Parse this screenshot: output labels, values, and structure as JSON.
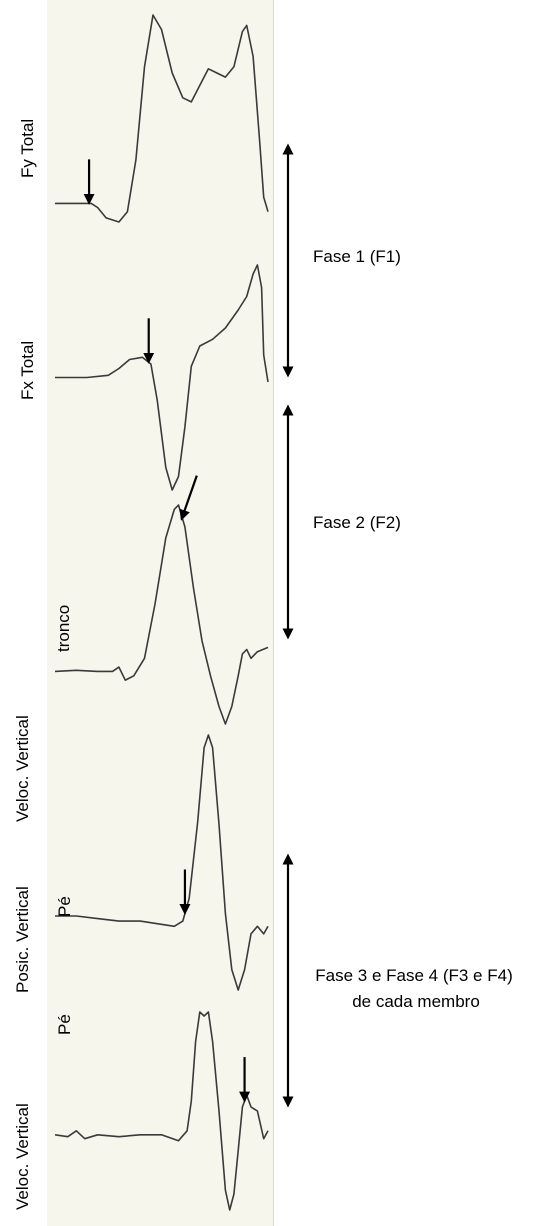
{
  "chart_data": {
    "type": "line",
    "title": "",
    "series": [
      {
        "name": "Fy Total",
        "points": [
          [
            0,
            0.09
          ],
          [
            0.12,
            0.09
          ],
          [
            0.17,
            0.09
          ],
          [
            0.2,
            0.07
          ],
          [
            0.24,
            0.02
          ],
          [
            0.3,
            0
          ],
          [
            0.34,
            0.05
          ],
          [
            0.38,
            0.3
          ],
          [
            0.42,
            0.75
          ],
          [
            0.46,
            1.0
          ],
          [
            0.5,
            0.93
          ],
          [
            0.55,
            0.72
          ],
          [
            0.6,
            0.6
          ],
          [
            0.64,
            0.58
          ],
          [
            0.68,
            0.66
          ],
          [
            0.72,
            0.74
          ],
          [
            0.76,
            0.72
          ],
          [
            0.8,
            0.7
          ],
          [
            0.84,
            0.75
          ],
          [
            0.88,
            0.92
          ],
          [
            0.9,
            0.95
          ],
          [
            0.93,
            0.8
          ],
          [
            0.96,
            0.4
          ],
          [
            0.98,
            0.12
          ],
          [
            1.0,
            0.05
          ]
        ],
        "marker_x": 0.16
      },
      {
        "name": "Fx Total",
        "points": [
          [
            0,
            0.5
          ],
          [
            0.15,
            0.5
          ],
          [
            0.25,
            0.51
          ],
          [
            0.3,
            0.54
          ],
          [
            0.35,
            0.58
          ],
          [
            0.41,
            0.59
          ],
          [
            0.45,
            0.56
          ],
          [
            0.48,
            0.4
          ],
          [
            0.52,
            0.1
          ],
          [
            0.55,
            0
          ],
          [
            0.58,
            0.06
          ],
          [
            0.61,
            0.28
          ],
          [
            0.64,
            0.55
          ],
          [
            0.68,
            0.64
          ],
          [
            0.74,
            0.67
          ],
          [
            0.8,
            0.72
          ],
          [
            0.86,
            0.8
          ],
          [
            0.9,
            0.86
          ],
          [
            0.93,
            0.96
          ],
          [
            0.95,
            1.0
          ],
          [
            0.97,
            0.9
          ],
          [
            0.98,
            0.6
          ],
          [
            1.0,
            0.48
          ]
        ],
        "marker_x": 0.44
      },
      {
        "name": "Veloc. Vertical — tronco",
        "points": [
          [
            0,
            0.24
          ],
          [
            0.1,
            0.245
          ],
          [
            0.2,
            0.24
          ],
          [
            0.27,
            0.24
          ],
          [
            0.3,
            0.26
          ],
          [
            0.33,
            0.2
          ],
          [
            0.37,
            0.22
          ],
          [
            0.42,
            0.3
          ],
          [
            0.47,
            0.55
          ],
          [
            0.52,
            0.85
          ],
          [
            0.56,
            0.98
          ],
          [
            0.58,
            1.0
          ],
          [
            0.61,
            0.9
          ],
          [
            0.65,
            0.62
          ],
          [
            0.69,
            0.38
          ],
          [
            0.73,
            0.22
          ],
          [
            0.77,
            0.08
          ],
          [
            0.8,
            0
          ],
          [
            0.83,
            0.08
          ],
          [
            0.86,
            0.22
          ],
          [
            0.88,
            0.32
          ],
          [
            0.9,
            0.34
          ],
          [
            0.92,
            0.3
          ],
          [
            0.95,
            0.33
          ],
          [
            1.0,
            0.35
          ]
        ],
        "marker_x": 0.6
      },
      {
        "name": "Posic. Vertical — Pé",
        "points": [
          [
            0,
            0.29
          ],
          [
            0.1,
            0.29
          ],
          [
            0.2,
            0.28
          ],
          [
            0.3,
            0.27
          ],
          [
            0.4,
            0.27
          ],
          [
            0.48,
            0.26
          ],
          [
            0.56,
            0.25
          ],
          [
            0.6,
            0.27
          ],
          [
            0.63,
            0.36
          ],
          [
            0.67,
            0.66
          ],
          [
            0.7,
            0.95
          ],
          [
            0.72,
            1.0
          ],
          [
            0.74,
            0.95
          ],
          [
            0.77,
            0.65
          ],
          [
            0.8,
            0.3
          ],
          [
            0.83,
            0.08
          ],
          [
            0.86,
            0
          ],
          [
            0.89,
            0.08
          ],
          [
            0.92,
            0.22
          ],
          [
            0.95,
            0.25
          ],
          [
            0.98,
            0.22
          ],
          [
            1.0,
            0.25
          ]
        ],
        "marker_x": 0.61
      },
      {
        "name": "Veloc. Vertical — Pé",
        "points": [
          [
            0,
            0.38
          ],
          [
            0.06,
            0.37
          ],
          [
            0.1,
            0.4
          ],
          [
            0.14,
            0.36
          ],
          [
            0.2,
            0.38
          ],
          [
            0.3,
            0.37
          ],
          [
            0.4,
            0.38
          ],
          [
            0.5,
            0.38
          ],
          [
            0.58,
            0.35
          ],
          [
            0.62,
            0.4
          ],
          [
            0.64,
            0.55
          ],
          [
            0.66,
            0.85
          ],
          [
            0.68,
            1.0
          ],
          [
            0.7,
            0.98
          ],
          [
            0.72,
            1.0
          ],
          [
            0.74,
            0.85
          ],
          [
            0.77,
            0.5
          ],
          [
            0.8,
            0.1
          ],
          [
            0.82,
            0
          ],
          [
            0.84,
            0.08
          ],
          [
            0.86,
            0.3
          ],
          [
            0.88,
            0.52
          ],
          [
            0.9,
            0.58
          ],
          [
            0.92,
            0.52
          ],
          [
            0.95,
            0.5
          ],
          [
            0.98,
            0.36
          ],
          [
            1.0,
            0.4
          ]
        ],
        "marker_x": 0.89
      }
    ],
    "labels": {
      "fy_total": "Fy Total",
      "fx_total": "Fx Total",
      "veloc_vertical_1": "Veloc. Vertical",
      "tronco": "tronco",
      "posic_vertical": "Posic. Vertical",
      "pe_1": "Pé",
      "veloc_vertical_2": "Veloc. Vertical",
      "pe_2": "Pé"
    },
    "phases": [
      {
        "label": "Fase 1 (F1)"
      },
      {
        "label": "Fase 2 (F2)"
      },
      {
        "label_line1": "Fase 3 e Fase 4 (F3 e F4)",
        "label_line2": "de cada membro"
      }
    ]
  }
}
